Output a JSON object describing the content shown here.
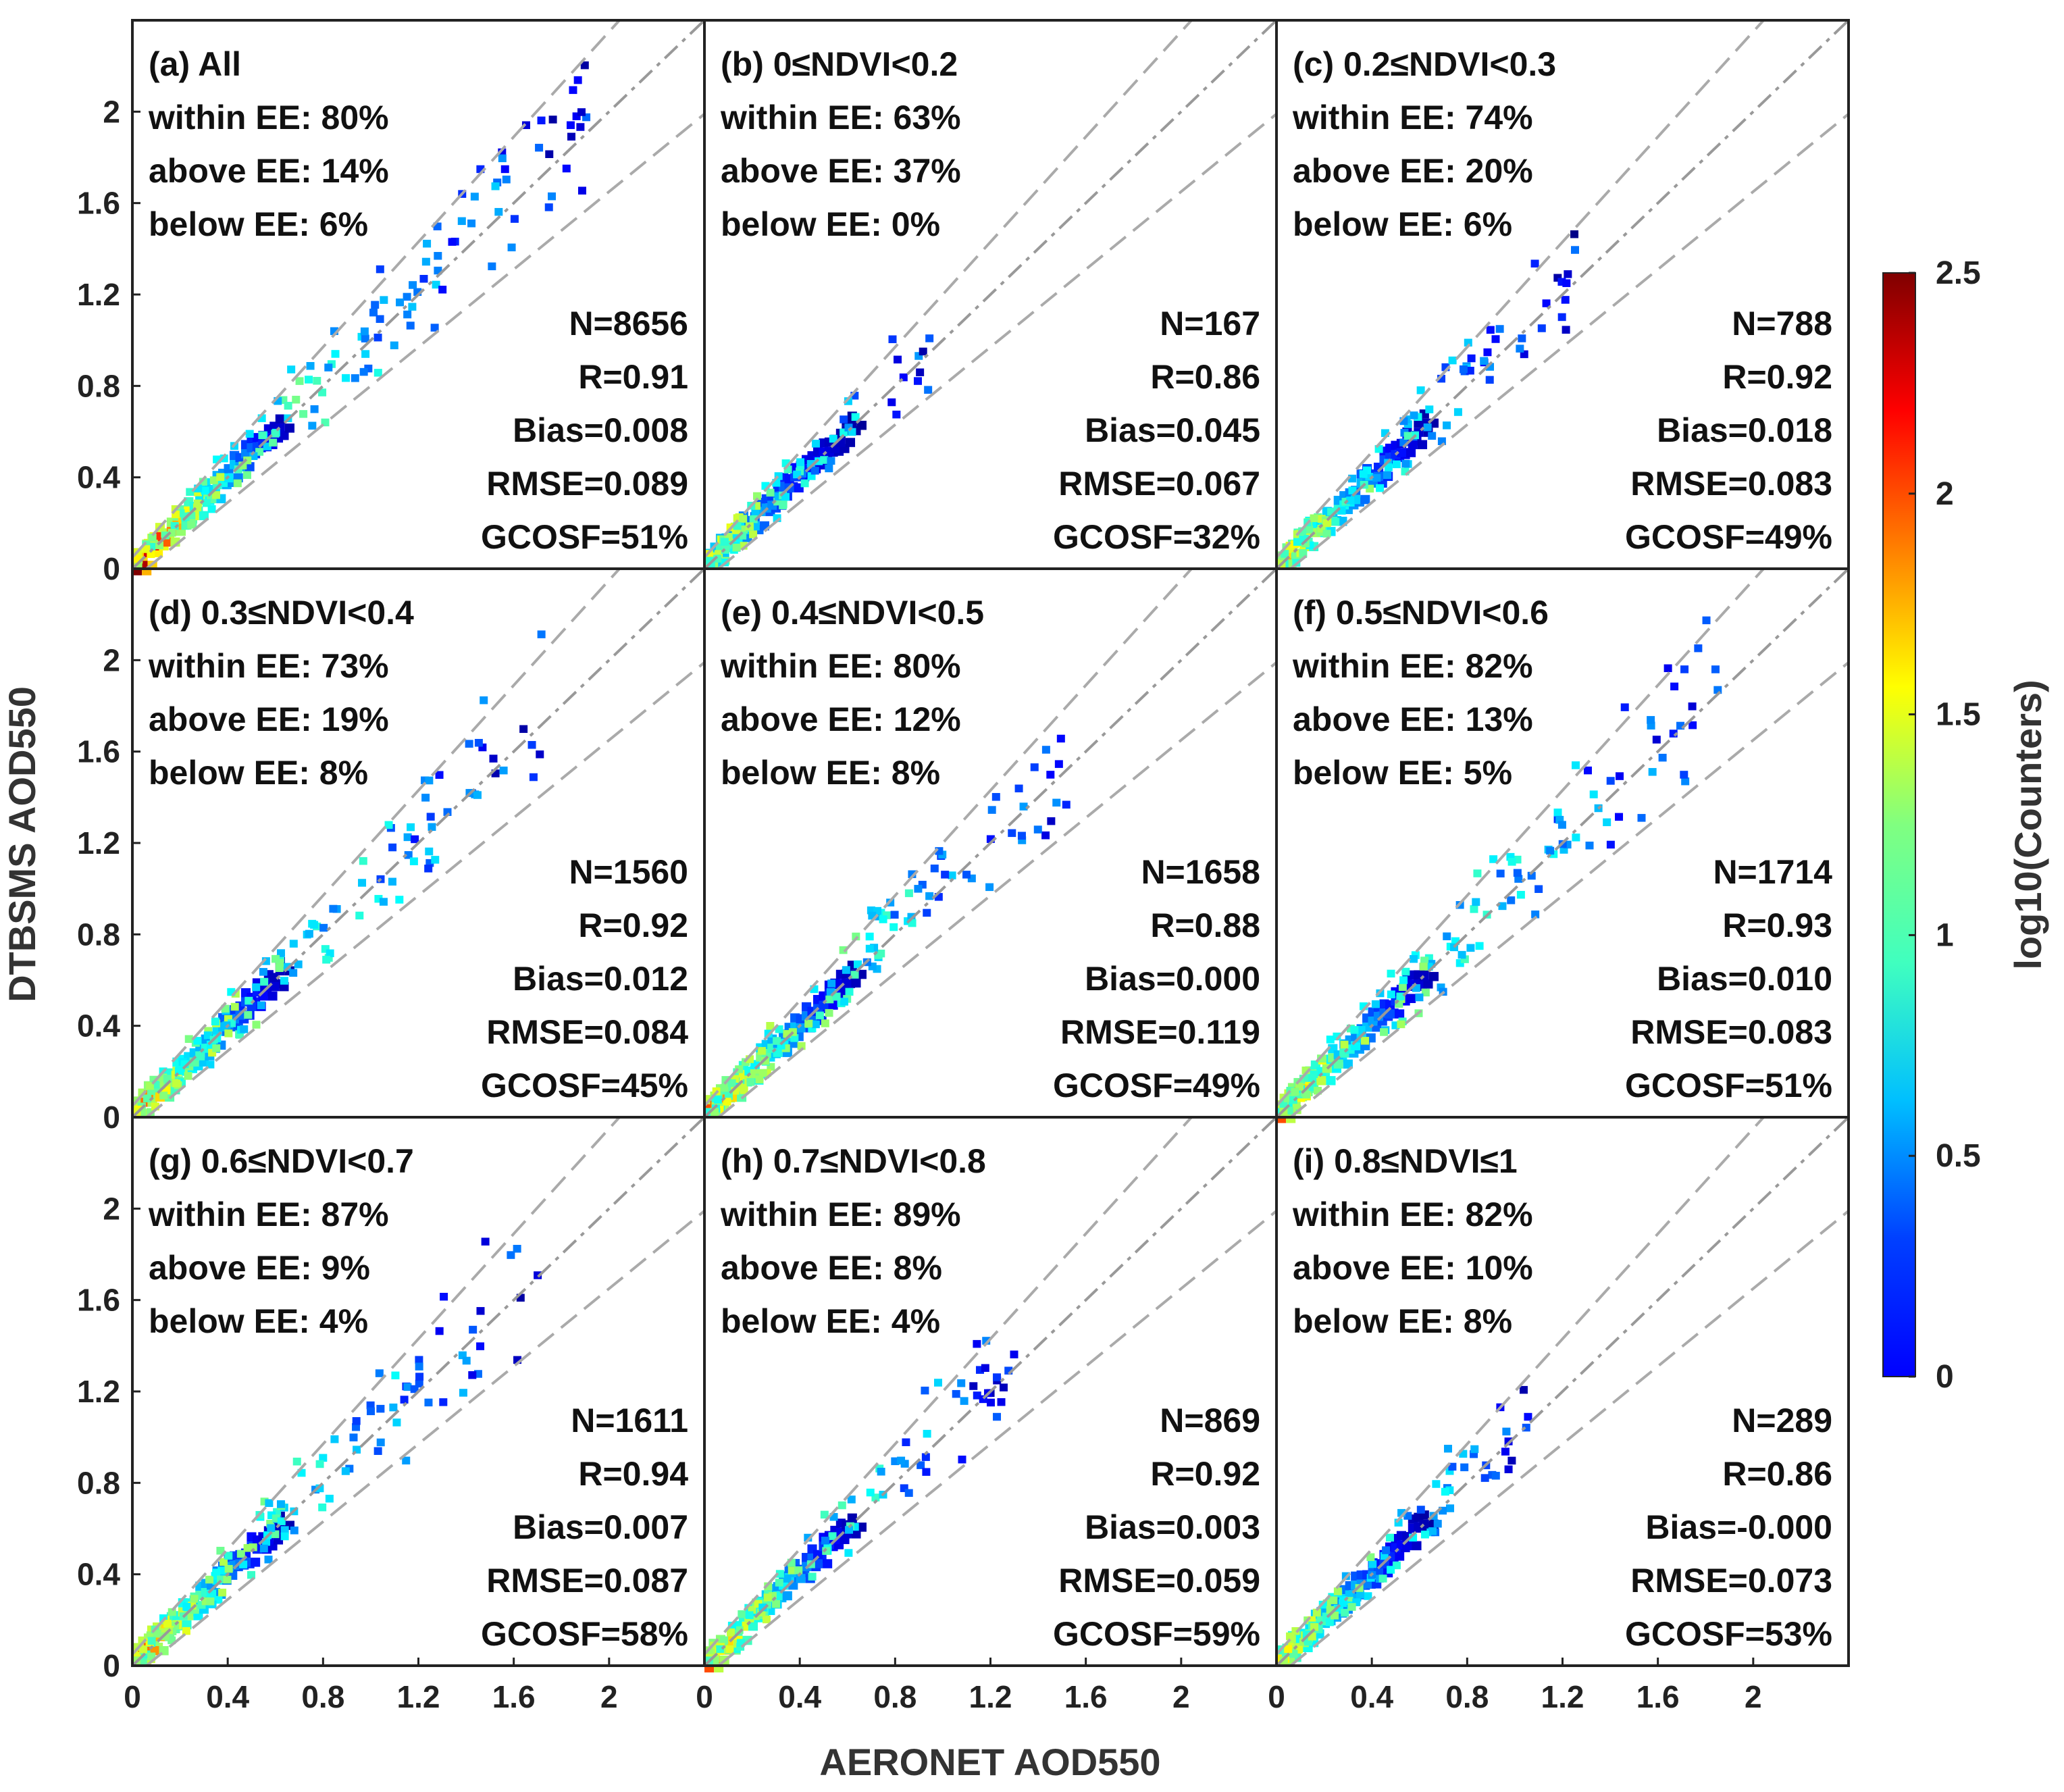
{
  "chart_data": {
    "type": "heatmap",
    "description_ref": "3x3 grid of density scatter plots",
    "xlabel": "AERONET AOD550",
    "ylabel": "DTBSMS AOD550",
    "xlim": [
      0,
      2.4
    ],
    "ylim": [
      0,
      2.4
    ],
    "x_ticks": [
      "0",
      "0.4",
      "0.8",
      "1.2",
      "1.6",
      "2"
    ],
    "y_ticks": [
      "0",
      "0.4",
      "0.8",
      "1.2",
      "1.6",
      "2"
    ],
    "reference_lines": {
      "one_to_one": "dash-dot",
      "expected_error": "dashed"
    },
    "colorbar": {
      "label": "log10(Counters)",
      "range": [
        0,
        2.5
      ],
      "ticks": [
        "0",
        "0.5",
        "1",
        "1.5",
        "2",
        "2.5"
      ]
    },
    "panels": [
      {
        "title": "(a) All",
        "within": "within EE: 80%",
        "above": "above EE: 14%",
        "below": "below EE: 6%",
        "n": "N=8656",
        "r": "R=0.91",
        "bias": "Bias=0.008",
        "rmse": "RMSE=0.089",
        "gcosf": "GCOSF=51%",
        "spread": 1.9,
        "density": 2.5
      },
      {
        "title": "(b) 0≤NDVI<0.2",
        "within": "within EE: 63%",
        "above": "above EE: 37%",
        "below": "below EE: 0%",
        "n": "N=167",
        "r": "R=0.86",
        "bias": "Bias=0.045",
        "rmse": "RMSE=0.067",
        "gcosf": "GCOSF=32%",
        "spread": 0.95,
        "density": 1.2
      },
      {
        "title": "(c) 0.2≤NDVI<0.3",
        "within": "within EE: 74%",
        "above": "above EE: 20%",
        "below": "below EE: 6%",
        "n": "N=788",
        "r": "R=0.92",
        "bias": "Bias=0.018",
        "rmse": "RMSE=0.083",
        "gcosf": "GCOSF=49%",
        "spread": 1.25,
        "density": 1.8
      },
      {
        "title": "(d) 0.3≤NDVI<0.4",
        "within": "within EE: 73%",
        "above": "above EE: 19%",
        "below": "below EE: 8%",
        "n": "N=1560",
        "r": "R=0.92",
        "bias": "Bias=0.012",
        "rmse": "RMSE=0.084",
        "gcosf": "GCOSF=45%",
        "spread": 1.7,
        "density": 2.0
      },
      {
        "title": "(e) 0.4≤NDVI<0.5",
        "within": "within EE: 80%",
        "above": "above EE: 12%",
        "below": "below EE: 8%",
        "n": "N=1658",
        "r": "R=0.88",
        "bias": "Bias=0.000",
        "rmse": "RMSE=0.119",
        "gcosf": "GCOSF=49%",
        "spread": 1.6,
        "density": 2.0
      },
      {
        "title": "(f) 0.5≤NDVI<0.6",
        "within": "within EE: 82%",
        "above": "above EE: 13%",
        "below": "below EE: 5%",
        "n": "N=1714",
        "r": "R=0.93",
        "bias": "Bias=0.010",
        "rmse": "RMSE=0.083",
        "gcosf": "GCOSF=51%",
        "spread": 1.9,
        "density": 2.0
      },
      {
        "title": "(g) 0.6≤NDVI<0.7",
        "within": "within EE: 87%",
        "above": "above EE: 9%",
        "below": "below EE: 4%",
        "n": "N=1611",
        "r": "R=0.94",
        "bias": "Bias=0.007",
        "rmse": "RMSE=0.087",
        "gcosf": "GCOSF=58%",
        "spread": 1.7,
        "density": 2.1
      },
      {
        "title": "(h) 0.7≤NDVI<0.8",
        "within": "within EE: 89%",
        "above": "above EE: 8%",
        "below": "below EE: 4%",
        "n": "N=869",
        "r": "R=0.92",
        "bias": "Bias=0.003",
        "rmse": "RMSE=0.059",
        "gcosf": "GCOSF=59%",
        "spread": 1.3,
        "density": 2.0
      },
      {
        "title": "(i) 0.8≤NDVI≤1",
        "within": "within EE: 82%",
        "above": "above EE: 10%",
        "below": "below EE: 8%",
        "n": "N=289",
        "r": "R=0.86",
        "bias": "Bias=-0.000",
        "rmse": "RMSE=0.073",
        "gcosf": "GCOSF=53%",
        "spread": 1.05,
        "density": 1.6
      }
    ]
  }
}
